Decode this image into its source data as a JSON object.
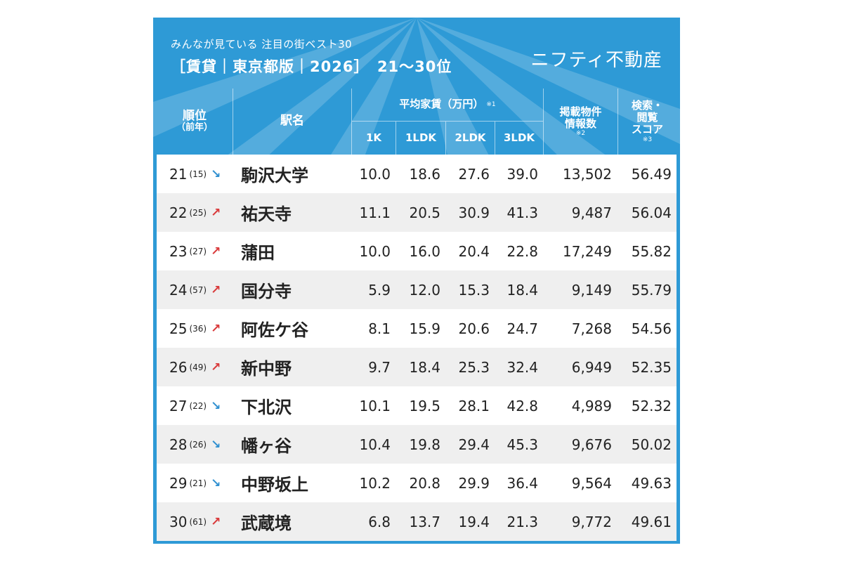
{
  "header": {
    "subtitle": "みんなが見ている 注目の街ベスト30",
    "title": "［賃貸｜東京都版｜2026］　21〜30位",
    "logo": "ニフティ不動産"
  },
  "columns": {
    "rank": "順位",
    "rank_sub": "（前年）",
    "station": "駅名",
    "rent_group": "平均家賃（万円）",
    "rent_note": "※1",
    "rent_1k": "1K",
    "rent_1ldk": "1LDK",
    "rent_2ldk": "2LDK",
    "rent_3ldk": "3LDK",
    "listings": "掲載物件\n情報数",
    "listings_note": "※2",
    "score": "検索・\n閲覧\nスコア",
    "score_note": "※3"
  },
  "colors": {
    "up": "#d9393a",
    "down": "#2f8fd0",
    "header_bg": "#2e9ad6"
  },
  "rows": [
    {
      "rank": "21",
      "prev": "(15)",
      "trend": "down",
      "station": "駒沢大学",
      "k1": "10.0",
      "ldk1": "18.6",
      "ldk2": "27.6",
      "ldk3": "39.0",
      "listings": "13,502",
      "score": "56.49"
    },
    {
      "rank": "22",
      "prev": "(25)",
      "trend": "up",
      "station": "祐天寺",
      "k1": "11.1",
      "ldk1": "20.5",
      "ldk2": "30.9",
      "ldk3": "41.3",
      "listings": "9,487",
      "score": "56.04"
    },
    {
      "rank": "23",
      "prev": "(27)",
      "trend": "up",
      "station": "蒲田",
      "k1": "10.0",
      "ldk1": "16.0",
      "ldk2": "20.4",
      "ldk3": "22.8",
      "listings": "17,249",
      "score": "55.82"
    },
    {
      "rank": "24",
      "prev": "(57)",
      "trend": "up",
      "station": "国分寺",
      "k1": "5.9",
      "ldk1": "12.0",
      "ldk2": "15.3",
      "ldk3": "18.4",
      "listings": "9,149",
      "score": "55.79"
    },
    {
      "rank": "25",
      "prev": "(36)",
      "trend": "up",
      "station": "阿佐ケ谷",
      "k1": "8.1",
      "ldk1": "15.9",
      "ldk2": "20.6",
      "ldk3": "24.7",
      "listings": "7,268",
      "score": "54.56"
    },
    {
      "rank": "26",
      "prev": "(49)",
      "trend": "up",
      "station": "新中野",
      "k1": "9.7",
      "ldk1": "18.4",
      "ldk2": "25.3",
      "ldk3": "32.4",
      "listings": "6,949",
      "score": "52.35"
    },
    {
      "rank": "27",
      "prev": "(22)",
      "trend": "down",
      "station": "下北沢",
      "k1": "10.1",
      "ldk1": "19.5",
      "ldk2": "28.1",
      "ldk3": "42.8",
      "listings": "4,989",
      "score": "52.32"
    },
    {
      "rank": "28",
      "prev": "(26)",
      "trend": "down",
      "station": "幡ヶ谷",
      "k1": "10.4",
      "ldk1": "19.8",
      "ldk2": "29.4",
      "ldk3": "45.3",
      "listings": "9,676",
      "score": "50.02"
    },
    {
      "rank": "29",
      "prev": "(21)",
      "trend": "down",
      "station": "中野坂上",
      "k1": "10.2",
      "ldk1": "20.8",
      "ldk2": "29.9",
      "ldk3": "36.4",
      "listings": "9,564",
      "score": "49.63"
    },
    {
      "rank": "30",
      "prev": "(61)",
      "trend": "up",
      "station": "武蔵境",
      "k1": "6.8",
      "ldk1": "13.7",
      "ldk2": "19.4",
      "ldk3": "21.3",
      "listings": "9,772",
      "score": "49.61"
    }
  ]
}
